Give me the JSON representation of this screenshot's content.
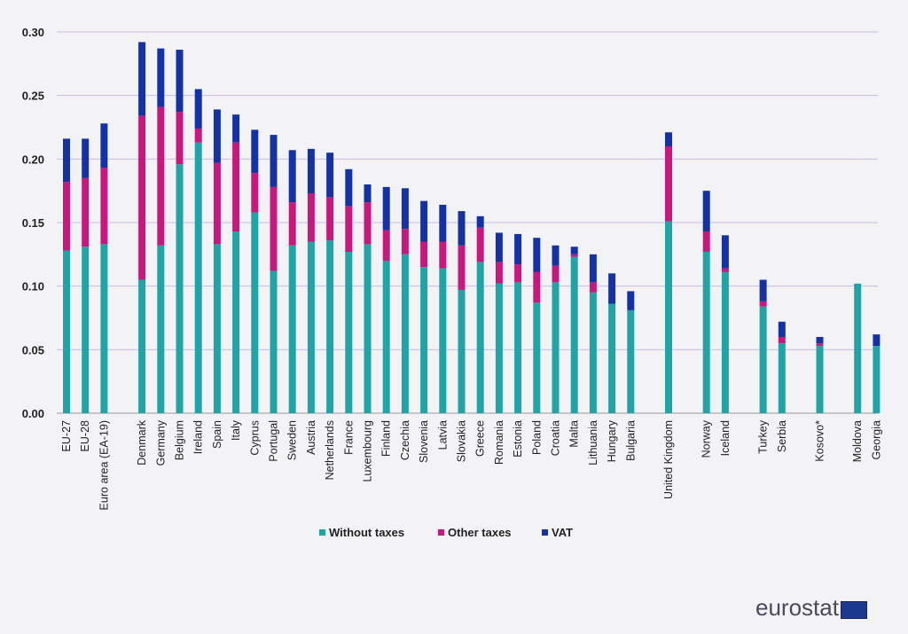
{
  "colors": {
    "without_taxes": "#1fa5a8",
    "other_taxes": "#c8187e",
    "vat": "#1432a6",
    "grid": "#cdb8e8",
    "background": "#f3f3f6"
  },
  "logo": {
    "text": "eurostat",
    "icon": "eu-flag-icon"
  },
  "chart_data": {
    "type": "bar",
    "stacked": true,
    "ylim": [
      0,
      0.3
    ],
    "yticks": [
      "0.00",
      "0.05",
      "0.10",
      "0.15",
      "0.20",
      "0.25",
      "0.30"
    ],
    "grid": true,
    "legend_position": "bottom",
    "categories": [
      "EU-27",
      "EU-28",
      "Euro area (EA-19)",
      "Denmark",
      "Germany",
      "Belgium",
      "Ireland",
      "Spain",
      "Italy",
      "Cyprus",
      "Portugal",
      "Sweden",
      "Austria",
      "Netherlands",
      "France",
      "Luxembourg",
      "Finland",
      "Czechia",
      "Slovenia",
      "Latvia",
      "Slovakia",
      "Greece",
      "Romania",
      "Estonia",
      "Poland",
      "Croatia",
      "Malta",
      "Lithuania",
      "Hungary",
      "Bulgaria",
      "United Kingdom",
      "Norway",
      "Iceland",
      "Turkey",
      "Serbia",
      "Kosovo*",
      "Moldova",
      "Georgia"
    ],
    "groups": [
      3,
      27,
      1,
      2,
      2,
      1,
      2
    ],
    "series": [
      {
        "name": "Without taxes",
        "values": [
          0.128,
          0.131,
          0.133,
          0.105,
          0.132,
          0.196,
          0.213,
          0.133,
          0.143,
          0.158,
          0.112,
          0.132,
          0.135,
          0.136,
          0.127,
          0.133,
          0.12,
          0.125,
          0.115,
          0.114,
          0.097,
          0.119,
          0.102,
          0.103,
          0.087,
          0.103,
          0.123,
          0.095,
          0.086,
          0.081,
          0.151,
          0.127,
          0.111,
          0.084,
          0.055,
          0.053,
          0.102,
          0.053
        ]
      },
      {
        "name": "Other taxes",
        "values": [
          0.054,
          0.054,
          0.06,
          0.129,
          0.109,
          0.041,
          0.011,
          0.064,
          0.07,
          0.031,
          0.066,
          0.034,
          0.038,
          0.034,
          0.036,
          0.033,
          0.024,
          0.02,
          0.02,
          0.021,
          0.035,
          0.027,
          0.017,
          0.014,
          0.024,
          0.013,
          0.002,
          0.008,
          0.0,
          0.0,
          0.059,
          0.016,
          0.003,
          0.004,
          0.005,
          0.002,
          0.0,
          0.0
        ]
      },
      {
        "name": "VAT",
        "values": [
          0.034,
          0.031,
          0.035,
          0.058,
          0.046,
          0.049,
          0.031,
          0.042,
          0.022,
          0.034,
          0.041,
          0.041,
          0.035,
          0.035,
          0.029,
          0.014,
          0.034,
          0.032,
          0.032,
          0.029,
          0.027,
          0.009,
          0.023,
          0.024,
          0.027,
          0.016,
          0.006,
          0.022,
          0.024,
          0.015,
          0.011,
          0.032,
          0.026,
          0.017,
          0.012,
          0.005,
          0.0,
          0.009
        ]
      }
    ]
  }
}
